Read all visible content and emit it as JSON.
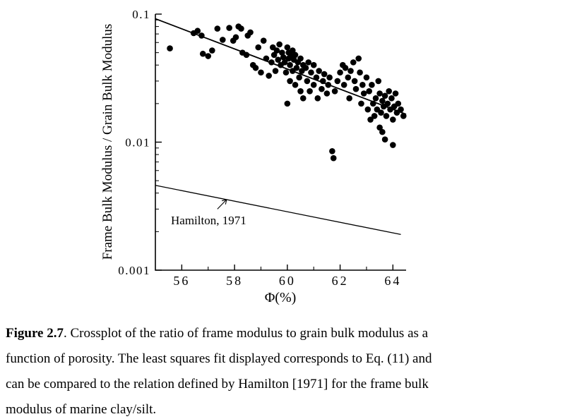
{
  "figure": {
    "caption_label": "Figure 2.7",
    "caption_lines": [
      ".  Crossplot of the ratio of frame modulus to grain bulk modulus as a",
      "function of porosity. The least squares fit displayed corresponds to Eq. (11) and",
      "can be compared to the relation defined by Hamilton [1971] for the frame bulk",
      "modulus of marine clay/silt."
    ]
  },
  "chart_data": {
    "type": "scatter",
    "title": "",
    "xlabel": "Φ(%)",
    "ylabel": "Frame Bulk Modulus / Grain Bulk Modulus",
    "xlim": [
      55,
      64.5
    ],
    "ylim": [
      0.001,
      0.1
    ],
    "yscale": "log",
    "grid": false,
    "x_major_ticks": [
      56,
      58,
      60,
      62,
      64
    ],
    "x_major_tick_labels": [
      "56",
      "58",
      "60",
      "62",
      "64"
    ],
    "x_minor_ticks": [
      57,
      59,
      61,
      63
    ],
    "y_major_ticks": [
      0.001,
      0.01,
      0.1
    ],
    "y_major_tick_labels": [
      "0.001",
      "0.01",
      "0.1"
    ],
    "marker": {
      "color": "#000000",
      "radius": 4.3
    },
    "fit_line": {
      "name": "least-squares-fit-eq11",
      "x": [
        55,
        64.5
      ],
      "y": [
        0.092,
        0.0165
      ]
    },
    "hamilton_line": {
      "name": "hamilton-1971-relation",
      "x": [
        55,
        64.3
      ],
      "y": [
        0.0046,
        0.0019
      ]
    },
    "annotation": {
      "text": "Hamilton, 1971",
      "text_x": 55.6,
      "text_y": 0.00245,
      "arrow_from": [
        57.35,
        0.003
      ],
      "arrow_to": [
        57.7,
        0.00356
      ]
    },
    "points": [
      [
        55.55,
        0.054
      ],
      [
        56.45,
        0.071
      ],
      [
        56.6,
        0.074
      ],
      [
        56.75,
        0.068
      ],
      [
        56.8,
        0.049
      ],
      [
        57.0,
        0.047
      ],
      [
        57.15,
        0.052
      ],
      [
        57.35,
        0.077
      ],
      [
        57.55,
        0.063
      ],
      [
        57.8,
        0.078
      ],
      [
        57.95,
        0.062
      ],
      [
        58.05,
        0.066
      ],
      [
        58.15,
        0.08
      ],
      [
        58.25,
        0.077
      ],
      [
        58.3,
        0.05
      ],
      [
        58.45,
        0.048
      ],
      [
        58.5,
        0.068
      ],
      [
        58.6,
        0.072
      ],
      [
        58.7,
        0.04
      ],
      [
        58.8,
        0.038
      ],
      [
        58.9,
        0.055
      ],
      [
        59.0,
        0.035
      ],
      [
        59.1,
        0.062
      ],
      [
        59.2,
        0.045
      ],
      [
        59.3,
        0.033
      ],
      [
        59.4,
        0.042
      ],
      [
        59.45,
        0.055
      ],
      [
        59.5,
        0.048
      ],
      [
        59.55,
        0.036
      ],
      [
        59.6,
        0.052
      ],
      [
        59.65,
        0.044
      ],
      [
        59.7,
        0.058
      ],
      [
        59.75,
        0.04
      ],
      [
        59.8,
        0.05
      ],
      [
        59.85,
        0.046
      ],
      [
        59.9,
        0.042
      ],
      [
        59.95,
        0.035
      ],
      [
        60.0,
        0.02
      ],
      [
        60.0,
        0.055
      ],
      [
        60.05,
        0.045
      ],
      [
        60.05,
        0.05
      ],
      [
        60.1,
        0.04
      ],
      [
        60.1,
        0.03
      ],
      [
        60.15,
        0.047
      ],
      [
        60.2,
        0.052
      ],
      [
        60.2,
        0.036
      ],
      [
        60.25,
        0.044
      ],
      [
        60.3,
        0.028
      ],
      [
        60.3,
        0.048
      ],
      [
        60.35,
        0.038
      ],
      [
        60.4,
        0.042
      ],
      [
        60.45,
        0.032
      ],
      [
        60.5,
        0.025
      ],
      [
        60.5,
        0.045
      ],
      [
        60.55,
        0.036
      ],
      [
        60.6,
        0.022
      ],
      [
        60.6,
        0.04
      ],
      [
        60.7,
        0.038
      ],
      [
        60.75,
        0.03
      ],
      [
        60.8,
        0.042
      ],
      [
        60.85,
        0.025
      ],
      [
        60.9,
        0.035
      ],
      [
        61.0,
        0.028
      ],
      [
        61.0,
        0.04
      ],
      [
        61.1,
        0.032
      ],
      [
        61.15,
        0.022
      ],
      [
        61.2,
        0.036
      ],
      [
        61.3,
        0.026
      ],
      [
        61.35,
        0.03
      ],
      [
        61.4,
        0.034
      ],
      [
        61.5,
        0.024
      ],
      [
        61.55,
        0.028
      ],
      [
        61.6,
        0.032
      ],
      [
        61.7,
        0.0085
      ],
      [
        61.75,
        0.0075
      ],
      [
        61.8,
        0.025
      ],
      [
        61.9,
        0.03
      ],
      [
        62.0,
        0.035
      ],
      [
        62.1,
        0.04
      ],
      [
        62.15,
        0.028
      ],
      [
        62.2,
        0.038
      ],
      [
        62.3,
        0.032
      ],
      [
        62.35,
        0.022
      ],
      [
        62.4,
        0.036
      ],
      [
        62.5,
        0.042
      ],
      [
        62.55,
        0.03
      ],
      [
        62.6,
        0.026
      ],
      [
        62.7,
        0.045
      ],
      [
        62.75,
        0.035
      ],
      [
        62.8,
        0.02
      ],
      [
        62.85,
        0.028
      ],
      [
        62.9,
        0.024
      ],
      [
        63.0,
        0.032
      ],
      [
        63.05,
        0.018
      ],
      [
        63.1,
        0.025
      ],
      [
        63.15,
        0.015
      ],
      [
        63.2,
        0.028
      ],
      [
        63.25,
        0.02
      ],
      [
        63.3,
        0.016
      ],
      [
        63.35,
        0.022
      ],
      [
        63.4,
        0.018
      ],
      [
        63.45,
        0.03
      ],
      [
        63.5,
        0.013
      ],
      [
        63.5,
        0.024
      ],
      [
        63.55,
        0.017
      ],
      [
        63.6,
        0.021
      ],
      [
        63.6,
        0.012
      ],
      [
        63.65,
        0.019
      ],
      [
        63.7,
        0.023
      ],
      [
        63.7,
        0.0105
      ],
      [
        63.75,
        0.016
      ],
      [
        63.8,
        0.02
      ],
      [
        63.85,
        0.025
      ],
      [
        63.9,
        0.018
      ],
      [
        63.95,
        0.022
      ],
      [
        64.0,
        0.015
      ],
      [
        64.0,
        0.0095
      ],
      [
        64.05,
        0.019
      ],
      [
        64.1,
        0.024
      ],
      [
        64.15,
        0.017
      ],
      [
        64.2,
        0.02
      ],
      [
        64.3,
        0.018
      ],
      [
        64.4,
        0.016
      ]
    ]
  }
}
